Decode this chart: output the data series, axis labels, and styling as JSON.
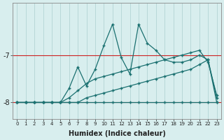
{
  "xlabel": "Humidex (Indice chaleur)",
  "background_color": "#d8eeee",
  "grid_color": "#b8d8d8",
  "line_color": "#1a7070",
  "red_line_color": "#cc2222",
  "x": [
    0,
    1,
    2,
    3,
    4,
    5,
    6,
    7,
    8,
    9,
    10,
    11,
    12,
    13,
    14,
    15,
    16,
    17,
    18,
    19,
    20,
    21,
    22,
    23
  ],
  "y_flat": [
    -8.0,
    -8.0,
    -8.0,
    -8.0,
    -8.0,
    -8.0,
    -8.0,
    -8.0,
    -8.0,
    -8.0,
    -8.0,
    -8.0,
    -8.0,
    -8.0,
    -8.0,
    -8.0,
    -8.0,
    -8.0,
    -8.0,
    -8.0,
    -8.0,
    -8.0,
    -8.0,
    -8.0
  ],
  "y_diag1": [
    -8.0,
    -8.0,
    -8.0,
    -8.0,
    -8.0,
    -8.0,
    -8.0,
    -8.0,
    -7.9,
    -7.85,
    -7.8,
    -7.75,
    -7.7,
    -7.65,
    -7.6,
    -7.55,
    -7.5,
    -7.45,
    -7.4,
    -7.35,
    -7.3,
    -7.2,
    -7.1,
    -8.0
  ],
  "y_diag2": [
    -8.0,
    -8.0,
    -8.0,
    -8.0,
    -8.0,
    -8.0,
    -7.9,
    -7.75,
    -7.6,
    -7.5,
    -7.45,
    -7.4,
    -7.35,
    -7.3,
    -7.25,
    -7.2,
    -7.15,
    -7.1,
    -7.05,
    -7.0,
    -6.95,
    -6.9,
    -7.15,
    -7.85
  ],
  "y_spiky": [
    -8.0,
    -8.0,
    -8.0,
    -8.0,
    -8.0,
    -8.0,
    -7.7,
    -7.25,
    -7.65,
    -7.3,
    -6.8,
    -6.35,
    -7.05,
    -7.4,
    -6.35,
    -6.75,
    -6.9,
    -7.1,
    -7.15,
    -7.15,
    -7.1,
    -7.0,
    -7.1,
    -7.9
  ],
  "ylim": [
    -8.35,
    -5.9
  ],
  "yticks": [
    -8,
    -7
  ],
  "xlim": [
    -0.5,
    23.5
  ]
}
